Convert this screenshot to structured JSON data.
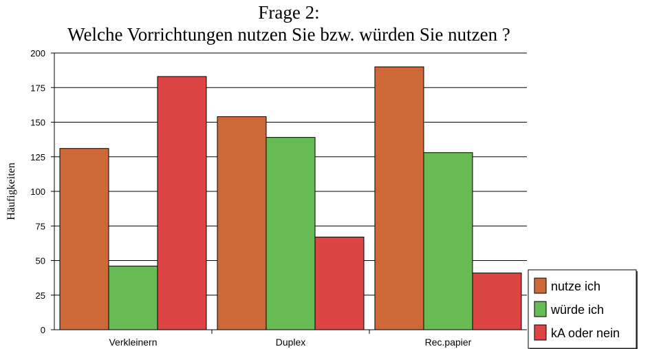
{
  "chart_data": {
    "type": "bar",
    "title_line1": "Frage 2:",
    "title_line2": "Welche Vorrichtungen nutzen Sie bzw. würden Sie nutzen ?",
    "xlabel": "",
    "ylabel": "Häufigkeiten",
    "ylim": [
      0,
      200
    ],
    "yticks": [
      "0",
      "25",
      "50",
      "75",
      "100",
      "125",
      "150",
      "175",
      "200"
    ],
    "categories": [
      "Verkleinern",
      "Duplex",
      "Rec.papier"
    ],
    "series": [
      {
        "name": "nutze ich",
        "color": "#cd6839",
        "values": [
          131,
          154,
          190
        ]
      },
      {
        "name": "würde ich",
        "color": "#66bb55",
        "values": [
          46,
          139,
          128
        ]
      },
      {
        "name": "kA oder nein",
        "color": "#dd4444",
        "values": [
          183,
          67,
          41
        ]
      }
    ],
    "grid": true,
    "legend": "bottom-right"
  }
}
